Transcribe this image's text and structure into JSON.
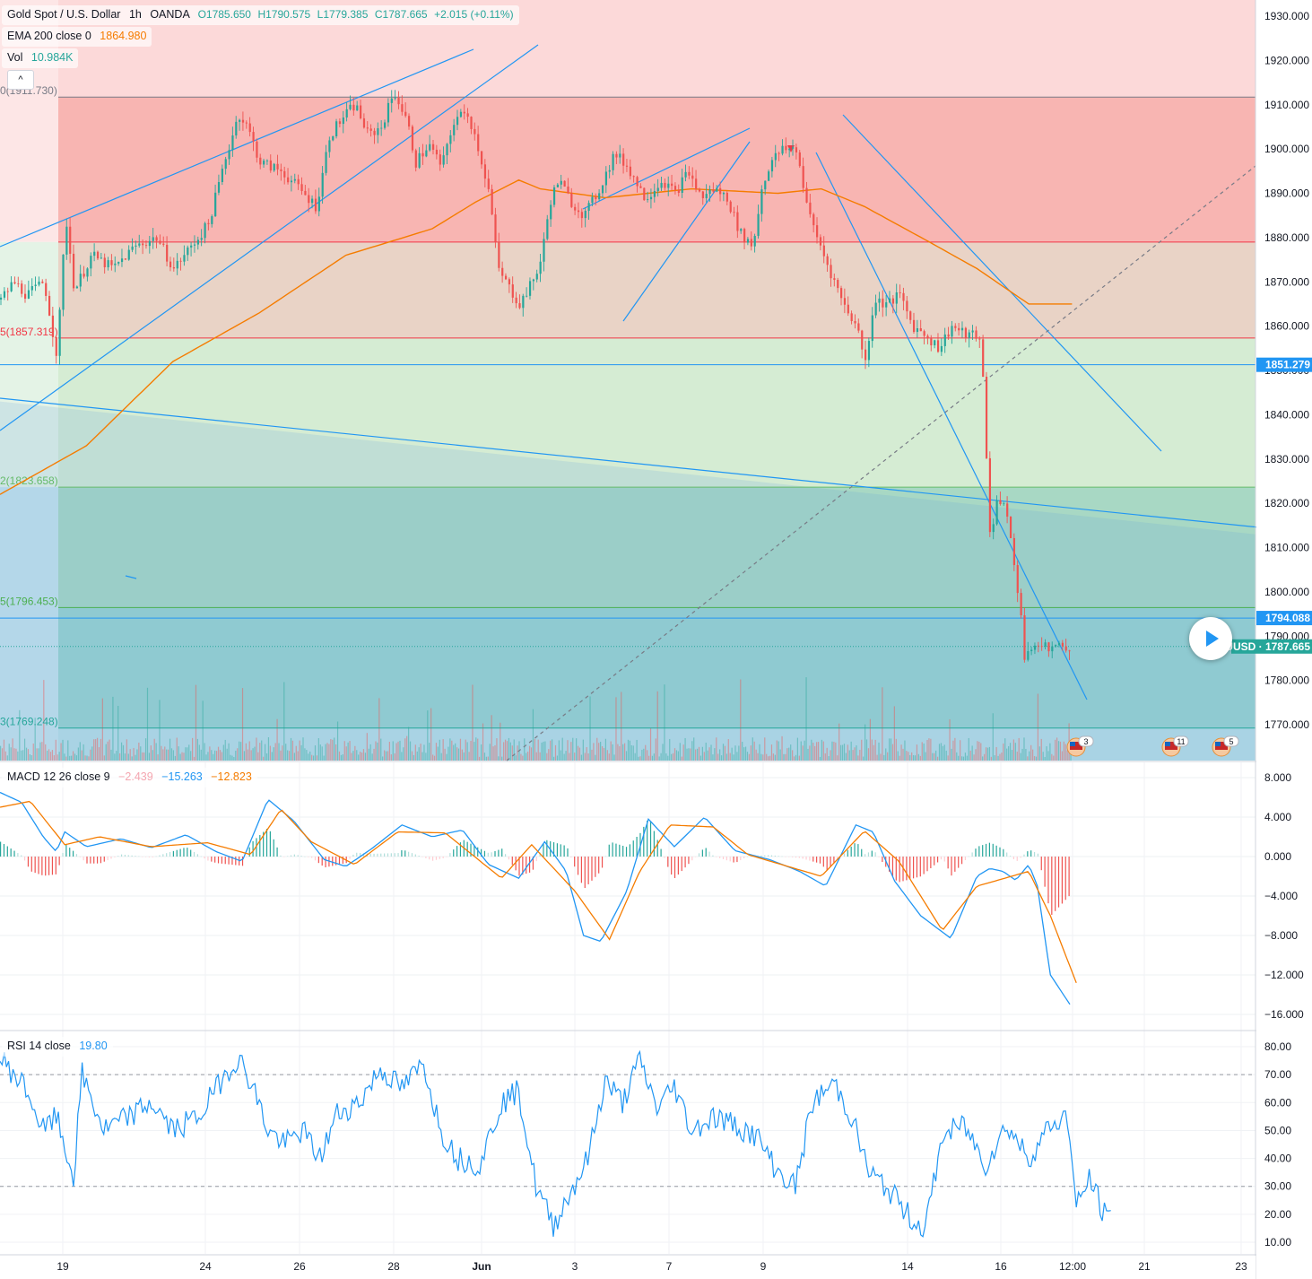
{
  "header": {
    "symbol": "Gold Spot / U.S. Dollar",
    "interval": "1h",
    "broker": "OANDA",
    "open": "O1785.650",
    "high": "H1790.575",
    "low": "L1779.385",
    "close": "C1787.665",
    "change": "+2.015 (+0.11%)",
    "ema_label": "EMA 200 close 0",
    "ema_value": "1864.980",
    "vol_label": "Vol",
    "vol_value": "10.984K",
    "collapse_icon": "^"
  },
  "price_axis": {
    "ticks": [
      "1930.000",
      "1920.000",
      "1910.000",
      "1900.000",
      "1890.000",
      "1880.000",
      "1870.000",
      "1860.000",
      "1850.000",
      "1840.000",
      "1830.000",
      "1820.000",
      "1810.000",
      "1800.000",
      "1790.000",
      "1780.000",
      "1770.000"
    ],
    "tick_values": [
      1930,
      1920,
      1910,
      1900,
      1890,
      1880,
      1870,
      1860,
      1850,
      1840,
      1830,
      1820,
      1810,
      1800,
      1790,
      1780,
      1770
    ],
    "badges": [
      {
        "text": "1851.279",
        "value": 1851.279,
        "color": "#2196f3"
      },
      {
        "text": "1794.088",
        "value": 1794.088,
        "color": "#2196f3"
      },
      {
        "text": "XAUUSD · 1787.665",
        "value": 1787.665,
        "color": "#26a69a"
      }
    ]
  },
  "fib_levels": [
    {
      "label": "0(1911.730)",
      "value": 1911.73,
      "color": "#787b86"
    },
    {
      "label": "1879.0",
      "value": 1879.0,
      "color": "#f23645",
      "hide_label": true
    },
    {
      "label": "5(1857.319)",
      "value": 1857.319,
      "color": "#f23645"
    },
    {
      "label": "2(1823.658)",
      "value": 1823.658,
      "color": "#66bb6a"
    },
    {
      "label": "5(1796.453)",
      "value": 1796.453,
      "color": "#4caf50"
    },
    {
      "label": "3(1769.248)",
      "value": 1769.248,
      "color": "#26a69a"
    }
  ],
  "time_axis": [
    "19",
    "24",
    "26",
    "28",
    "Jun",
    "3",
    "7",
    "9",
    "14",
    "16",
    "12:00",
    "21",
    "23"
  ],
  "events": [
    {
      "icon": "us-flag-icon",
      "count": "3"
    },
    {
      "icon": "us-flag-icon",
      "count": "11"
    },
    {
      "icon": "us-flag-icon",
      "count": "5"
    }
  ],
  "macd": {
    "label": "MACD 12 26 close 9",
    "hist_value": "−2.439",
    "macd_value": "−15.263",
    "signal_value": "−12.823",
    "ticks": [
      "8.000",
      "4.000",
      "0.000",
      "−4.000",
      "−8.000",
      "−12.000",
      "−16.000"
    ],
    "tick_values": [
      8,
      4,
      0,
      -4,
      -8,
      -12,
      -16
    ]
  },
  "rsi": {
    "label": "RSI 14 close",
    "value": "19.80",
    "ticks": [
      "80.00",
      "70.00",
      "60.00",
      "50.00",
      "40.00",
      "30.00",
      "20.00",
      "10.00"
    ],
    "tick_values": [
      80,
      70,
      60,
      50,
      40,
      30,
      20,
      10
    ]
  },
  "chart_data": {
    "type": "candlestick",
    "title": "Gold Spot / U.S. Dollar",
    "ylim": [
      1765,
      1933
    ],
    "price_path": [
      {
        "d": 0,
        "p": 1866
      },
      {
        "d": 6,
        "p": 1870
      },
      {
        "d": 12,
        "p": 1867
      },
      {
        "d": 20,
        "p": 1870
      },
      {
        "d": 26,
        "p": 1853
      },
      {
        "d": 30,
        "p": 1885
      },
      {
        "d": 34,
        "p": 1868
      },
      {
        "d": 42,
        "p": 1876
      },
      {
        "d": 52,
        "p": 1873
      },
      {
        "d": 62,
        "p": 1878
      },
      {
        "d": 72,
        "p": 1880
      },
      {
        "d": 80,
        "p": 1873
      },
      {
        "d": 96,
        "p": 1883
      },
      {
        "d": 104,
        "p": 1898
      },
      {
        "d": 110,
        "p": 1908
      },
      {
        "d": 114,
        "p": 1905
      },
      {
        "d": 120,
        "p": 1897
      },
      {
        "d": 130,
        "p": 1895
      },
      {
        "d": 140,
        "p": 1890
      },
      {
        "d": 146,
        "p": 1887
      },
      {
        "d": 152,
        "p": 1903
      },
      {
        "d": 158,
        "p": 1907
      },
      {
        "d": 164,
        "p": 1910
      },
      {
        "d": 170,
        "p": 1903
      },
      {
        "d": 176,
        "p": 1905
      },
      {
        "d": 182,
        "p": 1913
      },
      {
        "d": 188,
        "p": 1906
      },
      {
        "d": 192,
        "p": 1897
      },
      {
        "d": 198,
        "p": 1901
      },
      {
        "d": 204,
        "p": 1896
      },
      {
        "d": 210,
        "p": 1907
      },
      {
        "d": 216,
        "p": 1908
      },
      {
        "d": 220,
        "p": 1902
      },
      {
        "d": 226,
        "p": 1890
      },
      {
        "d": 230,
        "p": 1873
      },
      {
        "d": 236,
        "p": 1868
      },
      {
        "d": 240,
        "p": 1865
      },
      {
        "d": 246,
        "p": 1870
      },
      {
        "d": 250,
        "p": 1875
      },
      {
        "d": 254,
        "p": 1888
      },
      {
        "d": 258,
        "p": 1893
      },
      {
        "d": 264,
        "p": 1888
      },
      {
        "d": 270,
        "p": 1885
      },
      {
        "d": 276,
        "p": 1890
      },
      {
        "d": 284,
        "p": 1899
      },
      {
        "d": 290,
        "p": 1896
      },
      {
        "d": 298,
        "p": 1889
      },
      {
        "d": 306,
        "p": 1893
      },
      {
        "d": 312,
        "p": 1890
      },
      {
        "d": 318,
        "p": 1895
      },
      {
        "d": 324,
        "p": 1889
      },
      {
        "d": 330,
        "p": 1891
      },
      {
        "d": 336,
        "p": 1889
      },
      {
        "d": 342,
        "p": 1881
      },
      {
        "d": 348,
        "p": 1878
      },
      {
        "d": 352,
        "p": 1891
      },
      {
        "d": 356,
        "p": 1897
      },
      {
        "d": 362,
        "p": 1900
      },
      {
        "d": 368,
        "p": 1900
      },
      {
        "d": 374,
        "p": 1885
      },
      {
        "d": 380,
        "p": 1877
      },
      {
        "d": 384,
        "p": 1872
      },
      {
        "d": 390,
        "p": 1865
      },
      {
        "d": 396,
        "p": 1860
      },
      {
        "d": 400,
        "p": 1852
      },
      {
        "d": 404,
        "p": 1866
      },
      {
        "d": 410,
        "p": 1865
      },
      {
        "d": 416,
        "p": 1867
      },
      {
        "d": 422,
        "p": 1860
      },
      {
        "d": 428,
        "p": 1858
      },
      {
        "d": 434,
        "p": 1855
      },
      {
        "d": 440,
        "p": 1860
      },
      {
        "d": 446,
        "p": 1858
      },
      {
        "d": 452,
        "p": 1858
      },
      {
        "d": 454,
        "p": 1853
      },
      {
        "d": 456,
        "p": 1830
      },
      {
        "d": 458,
        "p": 1810
      },
      {
        "d": 460,
        "p": 1820
      },
      {
        "d": 464,
        "p": 1821
      },
      {
        "d": 468,
        "p": 1809
      },
      {
        "d": 472,
        "p": 1795
      },
      {
        "d": 474,
        "p": 1782
      },
      {
        "d": 476,
        "p": 1787.665
      }
    ],
    "ema200_path": [
      {
        "d": 0,
        "p": 1822
      },
      {
        "d": 40,
        "p": 1833
      },
      {
        "d": 80,
        "p": 1852
      },
      {
        "d": 120,
        "p": 1863
      },
      {
        "d": 160,
        "p": 1876
      },
      {
        "d": 200,
        "p": 1882
      },
      {
        "d": 220,
        "p": 1888
      },
      {
        "d": 240,
        "p": 1893
      },
      {
        "d": 250,
        "p": 1891
      },
      {
        "d": 280,
        "p": 1889
      },
      {
        "d": 320,
        "p": 1891
      },
      {
        "d": 360,
        "p": 1890
      },
      {
        "d": 380,
        "p": 1891
      },
      {
        "d": 400,
        "p": 1887
      },
      {
        "d": 430,
        "p": 1879
      },
      {
        "d": 452,
        "p": 1873
      },
      {
        "d": 476,
        "p": 1865
      }
    ],
    "macd_path": [
      {
        "d": 0,
        "m": 6.5
      },
      {
        "d": 10,
        "m": 5.5
      },
      {
        "d": 20,
        "m": 2.0
      },
      {
        "d": 26,
        "m": 0.5
      },
      {
        "d": 30,
        "m": 2.5
      },
      {
        "d": 40,
        "m": 1.0
      },
      {
        "d": 56,
        "m": 1.8
      },
      {
        "d": 70,
        "m": 0.9
      },
      {
        "d": 86,
        "m": 2.2
      },
      {
        "d": 100,
        "m": 0.5
      },
      {
        "d": 112,
        "m": -0.5
      },
      {
        "d": 124,
        "m": 5.8
      },
      {
        "d": 136,
        "m": 3.6
      },
      {
        "d": 150,
        "m": -0.3
      },
      {
        "d": 160,
        "m": -1.0
      },
      {
        "d": 172,
        "m": 0.8
      },
      {
        "d": 186,
        "m": 3.2
      },
      {
        "d": 200,
        "m": 2.0
      },
      {
        "d": 214,
        "m": 2.7
      },
      {
        "d": 226,
        "m": -0.8
      },
      {
        "d": 240,
        "m": -2.2
      },
      {
        "d": 252,
        "m": 1.5
      },
      {
        "d": 262,
        "m": -1.5
      },
      {
        "d": 270,
        "m": -8.0
      },
      {
        "d": 278,
        "m": -8.6
      },
      {
        "d": 290,
        "m": -3.5
      },
      {
        "d": 300,
        "m": 3.8
      },
      {
        "d": 312,
        "m": 1.0
      },
      {
        "d": 326,
        "m": 4.0
      },
      {
        "d": 340,
        "m": 0.6
      },
      {
        "d": 356,
        "m": -0.3
      },
      {
        "d": 370,
        "m": -1.5
      },
      {
        "d": 382,
        "m": -3.0
      },
      {
        "d": 396,
        "m": 3.2
      },
      {
        "d": 404,
        "m": 2.5
      },
      {
        "d": 414,
        "m": -2.5
      },
      {
        "d": 426,
        "m": -6.0
      },
      {
        "d": 440,
        "m": -8.3
      },
      {
        "d": 452,
        "m": -2.0
      },
      {
        "d": 458,
        "m": -1.2
      },
      {
        "d": 464,
        "m": -1.5
      },
      {
        "d": 470,
        "m": -2.4
      },
      {
        "d": 476,
        "m": -0.8
      },
      {
        "d": 480,
        "m": -3.0
      },
      {
        "d": 486,
        "m": -12.0
      },
      {
        "d": 496,
        "m": -15.3
      }
    ],
    "signal_path": [
      {
        "d": 0,
        "m": 5.0
      },
      {
        "d": 14,
        "m": 5.6
      },
      {
        "d": 30,
        "m": 1.2
      },
      {
        "d": 46,
        "m": 2.0
      },
      {
        "d": 70,
        "m": 1.0
      },
      {
        "d": 96,
        "m": 1.4
      },
      {
        "d": 116,
        "m": 0.2
      },
      {
        "d": 130,
        "m": 4.8
      },
      {
        "d": 144,
        "m": 1.5
      },
      {
        "d": 164,
        "m": -0.8
      },
      {
        "d": 184,
        "m": 2.5
      },
      {
        "d": 206,
        "m": 2.4
      },
      {
        "d": 232,
        "m": -2.2
      },
      {
        "d": 246,
        "m": 1.2
      },
      {
        "d": 266,
        "m": -3.5
      },
      {
        "d": 282,
        "m": -8.4
      },
      {
        "d": 296,
        "m": -1.5
      },
      {
        "d": 310,
        "m": 3.2
      },
      {
        "d": 330,
        "m": 3.0
      },
      {
        "d": 346,
        "m": 0.2
      },
      {
        "d": 380,
        "m": -2.0
      },
      {
        "d": 400,
        "m": 2.6
      },
      {
        "d": 416,
        "m": -0.5
      },
      {
        "d": 436,
        "m": -7.5
      },
      {
        "d": 452,
        "m": -3.0
      },
      {
        "d": 476,
        "m": -1.5
      },
      {
        "d": 486,
        "m": -6.0
      },
      {
        "d": 498,
        "m": -12.8
      }
    ],
    "rsi_path": [
      {
        "d": 0,
        "r": 76
      },
      {
        "d": 12,
        "r": 65
      },
      {
        "d": 20,
        "r": 50
      },
      {
        "d": 26,
        "r": 55
      },
      {
        "d": 34,
        "r": 33
      },
      {
        "d": 38,
        "r": 70
      },
      {
        "d": 48,
        "r": 50
      },
      {
        "d": 60,
        "r": 55
      },
      {
        "d": 70,
        "r": 60
      },
      {
        "d": 80,
        "r": 50
      },
      {
        "d": 92,
        "r": 55
      },
      {
        "d": 104,
        "r": 70
      },
      {
        "d": 110,
        "r": 76
      },
      {
        "d": 116,
        "r": 68
      },
      {
        "d": 124,
        "r": 50
      },
      {
        "d": 132,
        "r": 45
      },
      {
        "d": 140,
        "r": 50
      },
      {
        "d": 148,
        "r": 40
      },
      {
        "d": 156,
        "r": 56
      },
      {
        "d": 166,
        "r": 60
      },
      {
        "d": 176,
        "r": 72
      },
      {
        "d": 186,
        "r": 65
      },
      {
        "d": 196,
        "r": 74
      },
      {
        "d": 204,
        "r": 50
      },
      {
        "d": 212,
        "r": 40
      },
      {
        "d": 222,
        "r": 38
      },
      {
        "d": 232,
        "r": 60
      },
      {
        "d": 240,
        "r": 64
      },
      {
        "d": 248,
        "r": 30
      },
      {
        "d": 256,
        "r": 16
      },
      {
        "d": 264,
        "r": 28
      },
      {
        "d": 272,
        "r": 40
      },
      {
        "d": 280,
        "r": 68
      },
      {
        "d": 288,
        "r": 60
      },
      {
        "d": 296,
        "r": 75
      },
      {
        "d": 304,
        "r": 58
      },
      {
        "d": 312,
        "r": 66
      },
      {
        "d": 320,
        "r": 50
      },
      {
        "d": 330,
        "r": 55
      },
      {
        "d": 340,
        "r": 52
      },
      {
        "d": 350,
        "r": 48
      },
      {
        "d": 360,
        "r": 35
      },
      {
        "d": 368,
        "r": 30
      },
      {
        "d": 376,
        "r": 60
      },
      {
        "d": 386,
        "r": 67
      },
      {
        "d": 394,
        "r": 55
      },
      {
        "d": 402,
        "r": 35
      },
      {
        "d": 412,
        "r": 28
      },
      {
        "d": 420,
        "r": 20
      },
      {
        "d": 428,
        "r": 14
      },
      {
        "d": 436,
        "r": 48
      },
      {
        "d": 446,
        "r": 52
      },
      {
        "d": 456,
        "r": 38
      },
      {
        "d": 466,
        "r": 52
      },
      {
        "d": 476,
        "r": 40
      },
      {
        "d": 486,
        "r": 52
      },
      {
        "d": 494,
        "r": 55
      },
      {
        "d": 498,
        "r": 22
      },
      {
        "d": 504,
        "r": 33
      },
      {
        "d": 512,
        "r": 18
      },
      {
        "d": 514,
        "r": 19.8
      }
    ],
    "last_price": 1787.665
  }
}
